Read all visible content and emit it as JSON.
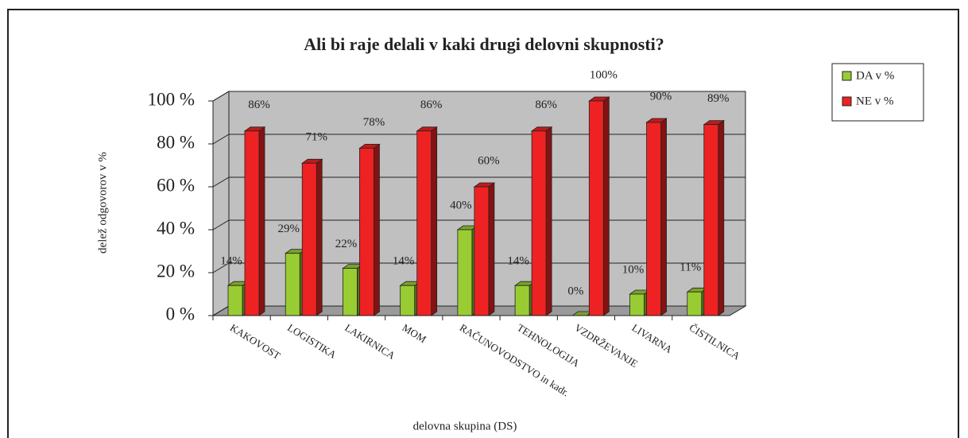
{
  "chart_data": {
    "type": "bar3d",
    "title": "Ali bi raje delali v kaki drugi delovni skupnosti?",
    "x_label": "delovna skupina (DS)",
    "y_label": "delež odgovorov v %",
    "categories": [
      "KAKOVOST",
      "LOGISTIKA",
      "LAKIRNICA",
      "MOM",
      "RAČUNOVODSTVO in kadr.",
      "TEHNOLOGIJA",
      "VZDRŽEVANJE",
      "LIVARNA",
      "ČISTILNICA"
    ],
    "series": [
      {
        "name": "DA v %",
        "color": "#99cc33",
        "values": [
          14,
          29,
          22,
          14,
          40,
          14,
          0,
          10,
          11
        ],
        "value_labels": [
          "14%",
          "29%",
          "22%",
          "14%",
          "40%",
          "14%",
          "0%",
          "10%",
          "11%"
        ]
      },
      {
        "name": "NE v %",
        "color": "#ee2222",
        "values": [
          86,
          71,
          78,
          86,
          60,
          86,
          100,
          90,
          89
        ],
        "value_labels": [
          "86%",
          "71%",
          "78%",
          "86%",
          "60%",
          "86%",
          "100%",
          "90%",
          "89%"
        ]
      }
    ],
    "ylim": [
      0,
      100
    ],
    "yticks": [
      {
        "value": 0,
        "label": "0 %"
      },
      {
        "value": 20,
        "label": "20 %"
      },
      {
        "value": 40,
        "label": "40 %"
      },
      {
        "value": 60,
        "label": "60 %"
      },
      {
        "value": 80,
        "label": "80 %"
      },
      {
        "value": 100,
        "label": "100 %"
      }
    ],
    "grid": true,
    "legend": "right"
  }
}
